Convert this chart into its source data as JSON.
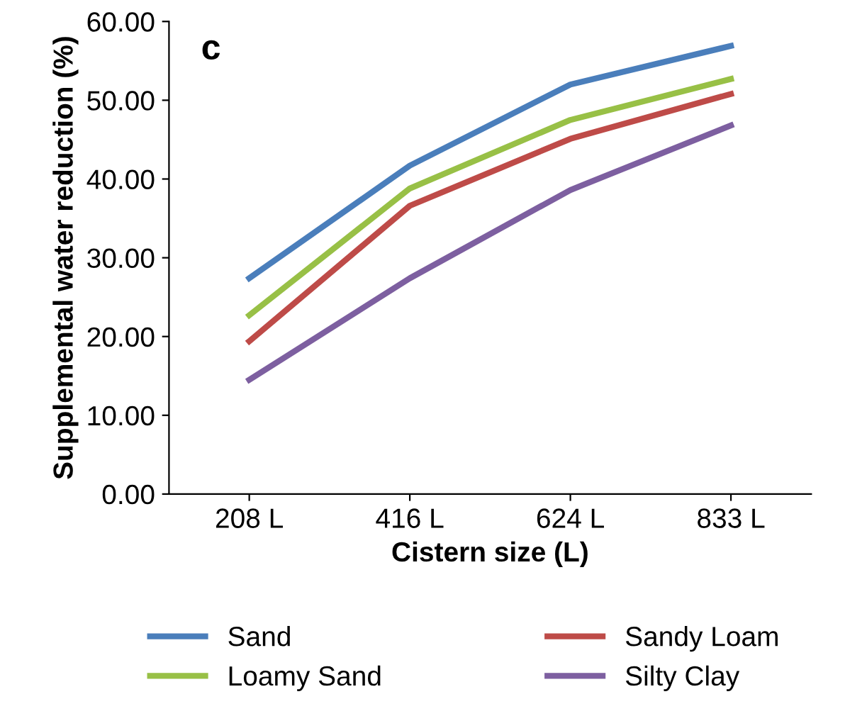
{
  "chart_data": {
    "type": "line",
    "xlabel": "Cistern size (L)",
    "ylabel": "Supplemental water reduction (%)",
    "categories": [
      "208 L",
      "416 L",
      "624 L",
      "833 L"
    ],
    "series": [
      {
        "name": "Sand",
        "color": "#4a7ebb",
        "values": [
          27.4,
          41.7,
          52.0,
          56.9
        ]
      },
      {
        "name": "Loamy Sand",
        "color": "#98c046",
        "values": [
          22.7,
          38.8,
          47.5,
          52.7
        ]
      },
      {
        "name": "Sandy Loam",
        "color": "#be4b48",
        "values": [
          19.4,
          36.6,
          45.1,
          50.8
        ]
      },
      {
        "name": "Silty Clay",
        "color": "#7d5fa0",
        "values": [
          14.5,
          27.4,
          38.6,
          46.8
        ]
      }
    ],
    "ylim": [
      0,
      60
    ],
    "yticks": [
      {
        "value": 0,
        "label": "0.00"
      },
      {
        "value": 10,
        "label": "10.00"
      },
      {
        "value": 20,
        "label": "20.00"
      },
      {
        "value": 30,
        "label": "30.00"
      },
      {
        "value": 40,
        "label": "40.00"
      },
      {
        "value": 50,
        "label": "50.00"
      },
      {
        "value": 60,
        "label": "60.00"
      }
    ],
    "annotations": [
      "c"
    ],
    "legend": "bottom",
    "grid": false,
    "marker": "none",
    "line_style": "solid"
  }
}
